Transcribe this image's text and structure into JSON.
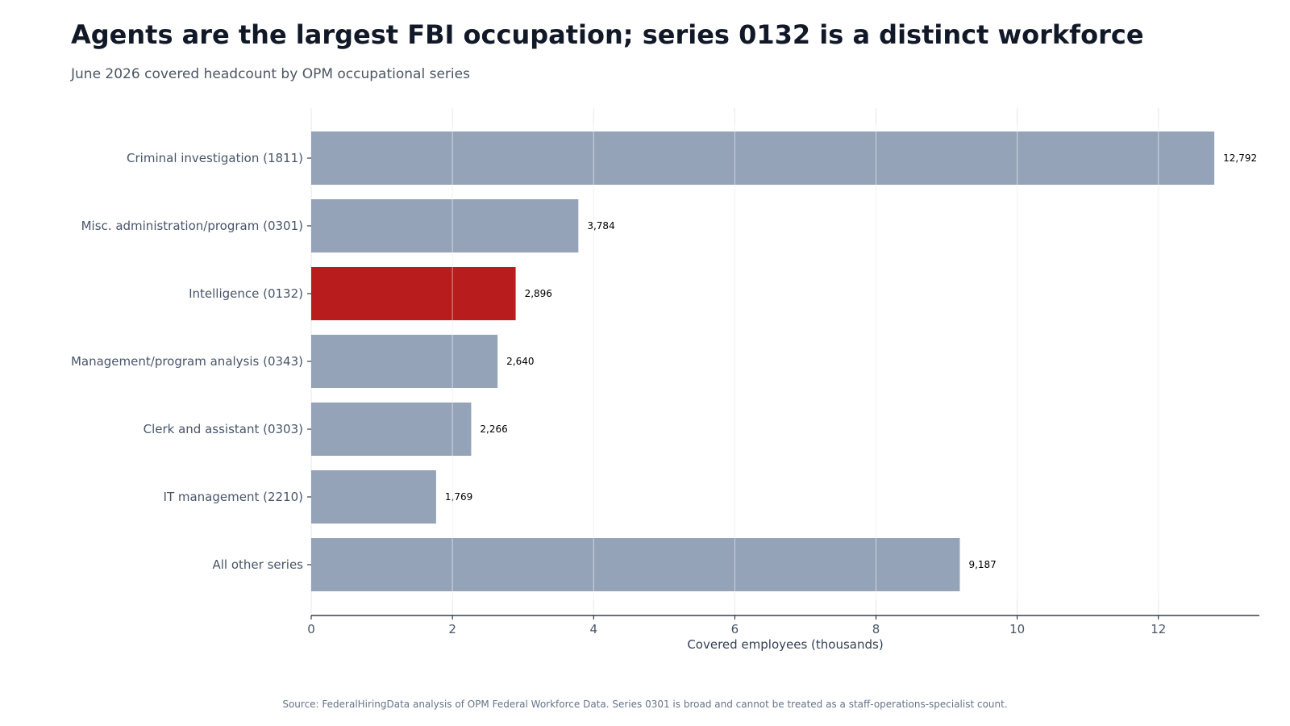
{
  "header": {
    "title": "Agents are the largest FBI occupation; series 0132 is a distinct workforce",
    "subtitle": "June 2026 covered headcount by OPM occupational series"
  },
  "footer": {
    "source": "Source: FederalHiringData analysis of OPM Federal Workforce Data. Series 0301 is broad and cannot be treated as a staff-operations-specialist count."
  },
  "chart_data": {
    "type": "bar",
    "orientation": "horizontal",
    "title": "Agents are the largest FBI occupation; series 0132 is a distinct workforce",
    "subtitle": "June 2026 covered headcount by OPM occupational series",
    "xlabel": "Covered employees (thousands)",
    "ylabel": "",
    "xlim": [
      0,
      13.43
    ],
    "x_ticks": [
      0,
      2,
      4,
      6,
      8,
      10,
      12
    ],
    "grid": "vertical",
    "categories": [
      "Criminal investigation (1811)",
      "Misc. administration/program (0301)",
      "Intelligence (0132)",
      "Management/program analysis (0343)",
      "Clerk and assistant (0303)",
      "IT management (2210)",
      "All other series"
    ],
    "values": [
      12.792,
      3.784,
      2.896,
      2.64,
      2.266,
      1.769,
      9.187
    ],
    "data_labels": [
      "12,792",
      "3,784",
      "2,896",
      "2,640",
      "2,266",
      "1,769",
      "9,187"
    ],
    "highlight_category": "Intelligence (0132)",
    "colors": {
      "default_bar": "#94a3b8",
      "highlight_bar": "#b91c1c",
      "grid": "#e5e7eb",
      "axis": "#111827",
      "label": "#475569"
    }
  }
}
